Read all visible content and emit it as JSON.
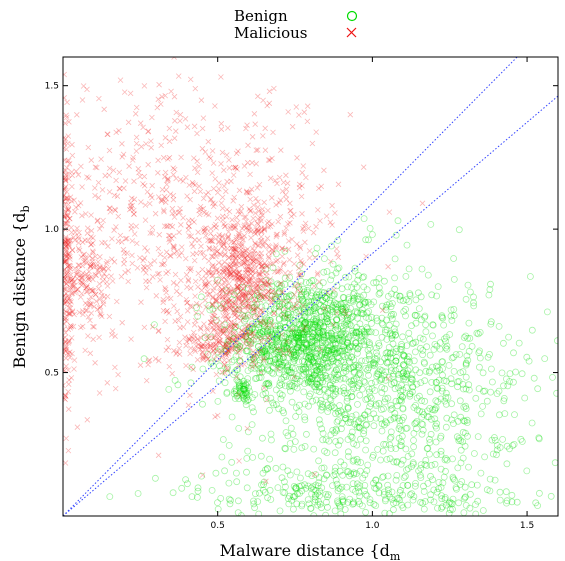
{
  "chart_data": {
    "type": "scatter",
    "title": "",
    "xlabel": "Malware distance {d",
    "xlabel_sub": "m",
    "ylabel": "Benign distance {d",
    "ylabel_sub": "b",
    "xlim": [
      0,
      1.6
    ],
    "ylim": [
      0,
      1.6
    ],
    "xticks": [
      "0.5",
      "1.0",
      "1.5"
    ],
    "yticks": [
      "0.5",
      "1.0",
      "1.5"
    ],
    "grid": false,
    "legend_position": "top-center",
    "series": [
      {
        "name": "Benign",
        "marker": "circle",
        "color": "#00dd00",
        "clusters": [
          {
            "x": 0.78,
            "y": 0.62,
            "sx": 0.12,
            "sy": 0.1,
            "n": 900
          },
          {
            "x": 0.95,
            "y": 0.5,
            "sx": 0.22,
            "sy": 0.2,
            "n": 700
          },
          {
            "x": 0.9,
            "y": 0.08,
            "sx": 0.25,
            "sy": 0.05,
            "n": 250
          },
          {
            "x": 1.2,
            "y": 0.35,
            "sx": 0.2,
            "sy": 0.25,
            "n": 400
          },
          {
            "x": 0.58,
            "y": 0.44,
            "sx": 0.015,
            "sy": 0.02,
            "n": 40
          }
        ]
      },
      {
        "name": "Malicious",
        "marker": "cross",
        "color": "#ee1111",
        "clusters": [
          {
            "x": 0.58,
            "y": 0.82,
            "sx": 0.08,
            "sy": 0.12,
            "n": 600
          },
          {
            "x": 0.4,
            "y": 1.0,
            "sx": 0.25,
            "sy": 0.25,
            "n": 800
          },
          {
            "x": 0.01,
            "y": 0.85,
            "sx": 0.01,
            "sy": 0.25,
            "n": 250
          },
          {
            "x": 0.08,
            "y": 0.82,
            "sx": 0.04,
            "sy": 0.1,
            "n": 150
          },
          {
            "x": 0.5,
            "y": 0.6,
            "sx": 0.06,
            "sy": 0.04,
            "n": 150
          }
        ]
      }
    ],
    "reference_lines": [
      {
        "slope": 1.09,
        "intercept": 0.0,
        "style": "dotted",
        "color": "#3344ff"
      },
      {
        "slope": 0.915,
        "intercept": 0.0,
        "style": "dotted",
        "color": "#3344ff"
      }
    ]
  }
}
